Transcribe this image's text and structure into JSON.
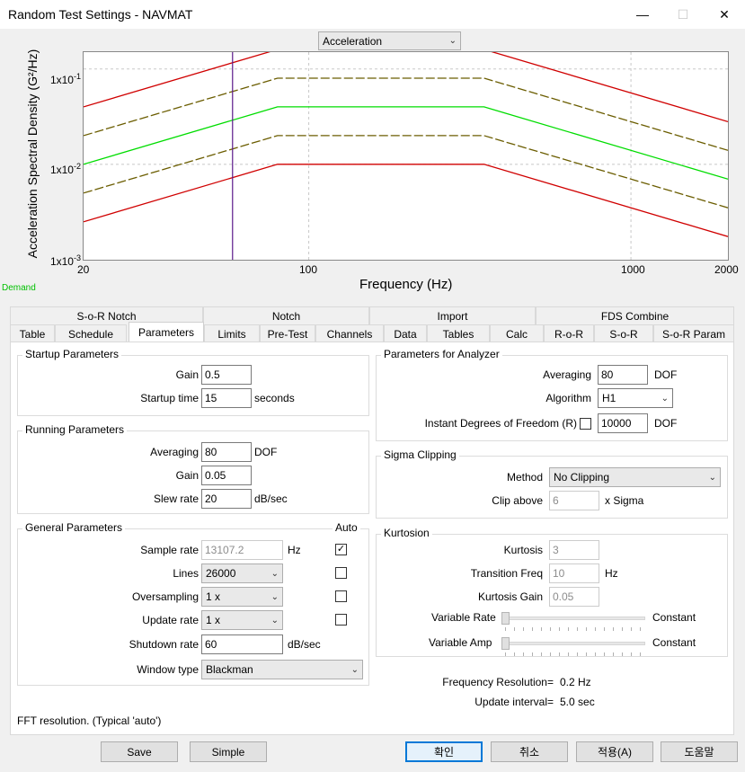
{
  "window": {
    "title": "Random Test Settings - NAVMAT"
  },
  "chart_selector": {
    "value": "Acceleration"
  },
  "chart_data": {
    "type": "line",
    "ylabel": "Acceleration Spectral Density (G²/Hz)",
    "xlabel": "Frequency (Hz)",
    "x_scale": "log",
    "y_scale": "log",
    "xlim": [
      20,
      2000
    ],
    "ylim": [
      0.001,
      0.15
    ],
    "x_ticks": [
      "20",
      "100",
      "1000",
      "2000"
    ],
    "y_ticks": [
      {
        "base": "1x10",
        "exp": "-1"
      },
      {
        "base": "1x10",
        "exp": "-2"
      },
      {
        "base": "1x10",
        "exp": "-3"
      }
    ],
    "grid": true,
    "marker_x": 58,
    "series": [
      {
        "color": "#d00000",
        "style": "solid",
        "x": [
          20,
          80,
          350,
          2000
        ],
        "y": [
          0.04,
          0.16,
          0.16,
          0.028
        ]
      },
      {
        "color": "#6b5d00",
        "style": "dashed",
        "x": [
          20,
          80,
          350,
          2000
        ],
        "y": [
          0.02,
          0.08,
          0.08,
          0.014
        ]
      },
      {
        "color": "#00dd00",
        "style": "solid",
        "x": [
          20,
          80,
          350,
          2000
        ],
        "y": [
          0.01,
          0.04,
          0.04,
          0.007
        ]
      },
      {
        "color": "#6b5d00",
        "style": "dashed",
        "x": [
          20,
          80,
          350,
          2000
        ],
        "y": [
          0.005,
          0.02,
          0.02,
          0.0035
        ]
      },
      {
        "color": "#d00000",
        "style": "solid",
        "x": [
          20,
          80,
          350,
          2000
        ],
        "y": [
          0.0025,
          0.01,
          0.01,
          0.00175
        ]
      }
    ],
    "legend_label": "Demand"
  },
  "tabs_top": [
    "S-o-R Notch",
    "Notch",
    "Import",
    "FDS Combine"
  ],
  "tabs_bottom": [
    "Table",
    "Schedule",
    "Parameters",
    "Limits",
    "Pre-Test",
    "Channels",
    "Data",
    "Tables",
    "Calc",
    "R-o-R",
    "S-o-R",
    "S-o-R Param"
  ],
  "startup": {
    "title": "Startup Parameters",
    "gain_label": "Gain",
    "gain": "0.5",
    "time_label": "Startup time",
    "time": "15",
    "time_unit": "seconds"
  },
  "running": {
    "title": "Running Parameters",
    "avg_label": "Averaging",
    "avg": "80",
    "avg_unit": "DOF",
    "gain_label": "Gain",
    "gain": "0.05",
    "slew_label": "Slew rate",
    "slew": "20",
    "slew_unit": "dB/sec"
  },
  "general": {
    "title": "General Parameters",
    "auto_label": "Auto",
    "sample_label": "Sample rate",
    "sample": "13107.2",
    "sample_unit": "Hz",
    "lines_label": "Lines",
    "lines": "26000",
    "over_label": "Oversampling",
    "over": "1 x",
    "update_label": "Update rate",
    "update": "1 x",
    "shutdown_label": "Shutdown rate",
    "shutdown": "60",
    "shutdown_unit": "dB/sec",
    "window_label": "Window type",
    "window": "Blackman",
    "check_mark": "✓"
  },
  "analyzer": {
    "title": "Parameters for Analyzer",
    "avg_label": "Averaging",
    "avg": "80",
    "avg_unit": "DOF",
    "alg_label": "Algorithm",
    "alg": "H1",
    "idof_label": "Instant Degrees of Freedom (R)",
    "idof": "10000",
    "idof_unit": "DOF"
  },
  "sigma": {
    "title": "Sigma Clipping",
    "method_label": "Method",
    "method": "No Clipping",
    "clip_label": "Clip above",
    "clip": "6",
    "clip_unit": "x Sigma"
  },
  "kurtosis": {
    "title": "Kurtosion",
    "k_label": "Kurtosis",
    "k": "3",
    "tf_label": "Transition Freq",
    "tf": "10",
    "tf_unit": "Hz",
    "kg_label": "Kurtosis Gain",
    "kg": "0.05",
    "vr_label": "Variable Rate",
    "vr_value": "Constant",
    "va_label": "Variable Amp",
    "va_value": "Constant"
  },
  "info": {
    "fr_label": "Frequency Resolution=",
    "fr": "0.2 Hz",
    "ui_label": "Update interval=",
    "ui": "5.0 sec"
  },
  "status_text": "FFT resolution. (Typical 'auto')",
  "buttons": {
    "save": "Save",
    "simple": "Simple",
    "ok": "확인",
    "cancel": "취소",
    "apply": "적용(A)",
    "help": "도움말"
  }
}
